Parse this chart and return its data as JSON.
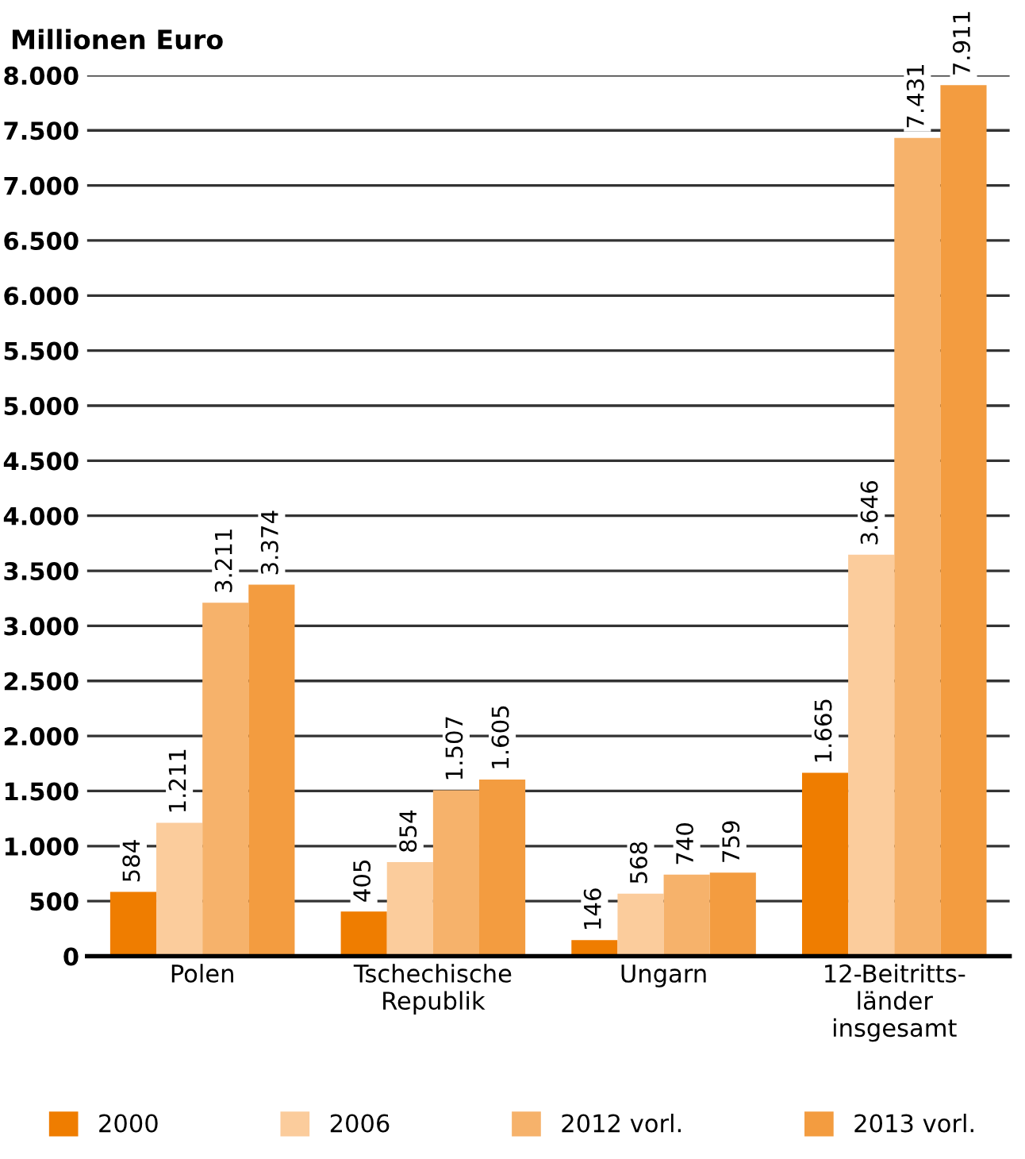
{
  "chart_data": {
    "type": "bar",
    "ylabel": "Millionen Euro",
    "categories": [
      "Polen",
      "Tschechische\nRepublik",
      "Ungarn",
      "12-Beitritts-\nländer\ninsgesamt"
    ],
    "series": [
      {
        "name": "2000",
        "color": "#ef7d00",
        "values": [
          584,
          405,
          146,
          1665
        ],
        "value_labels": [
          "584",
          "405",
          "146",
          "1.665"
        ]
      },
      {
        "name": "2006",
        "color": "#fbcc9c",
        "values": [
          1211,
          854,
          568,
          3646
        ],
        "value_labels": [
          "1.211",
          "854",
          "568",
          "3.646"
        ]
      },
      {
        "name": "2012 vorl.",
        "color": "#f6b26b",
        "values": [
          3211,
          1507,
          740,
          7431
        ],
        "value_labels": [
          "3.211",
          "1.507",
          "740",
          "7.431"
        ]
      },
      {
        "name": "2013 vorl.",
        "color": "#f39c40",
        "values": [
          3374,
          1605,
          759,
          7911
        ],
        "value_labels": [
          "3.374",
          "1.605",
          "759",
          "7.911"
        ]
      }
    ],
    "ylim": [
      0,
      8000
    ],
    "yticks": [
      0,
      {
        "value": 500,
        "label": "500"
      },
      {
        "value": 1000,
        "label": "1.000"
      },
      {
        "value": 1500,
        "label": "1.500"
      },
      {
        "value": 2000,
        "label": "2.000"
      },
      {
        "value": 2500,
        "label": "2.500"
      },
      {
        "value": 3000,
        "label": "3.000"
      },
      {
        "value": 3500,
        "label": "3.500"
      },
      {
        "value": 4000,
        "label": "4.000"
      },
      {
        "value": 4500,
        "label": "4.500"
      },
      {
        "value": 5000,
        "label": "5.000"
      },
      {
        "value": 5500,
        "label": "5.500"
      },
      {
        "value": 6000,
        "label": "6.000"
      },
      {
        "value": 6500,
        "label": "6.500"
      },
      {
        "value": 7000,
        "label": "7.000"
      },
      {
        "value": 7500,
        "label": "7.500"
      },
      {
        "value": 8000,
        "label": "8.000"
      }
    ],
    "grid": "y",
    "legend": "bottom"
  }
}
